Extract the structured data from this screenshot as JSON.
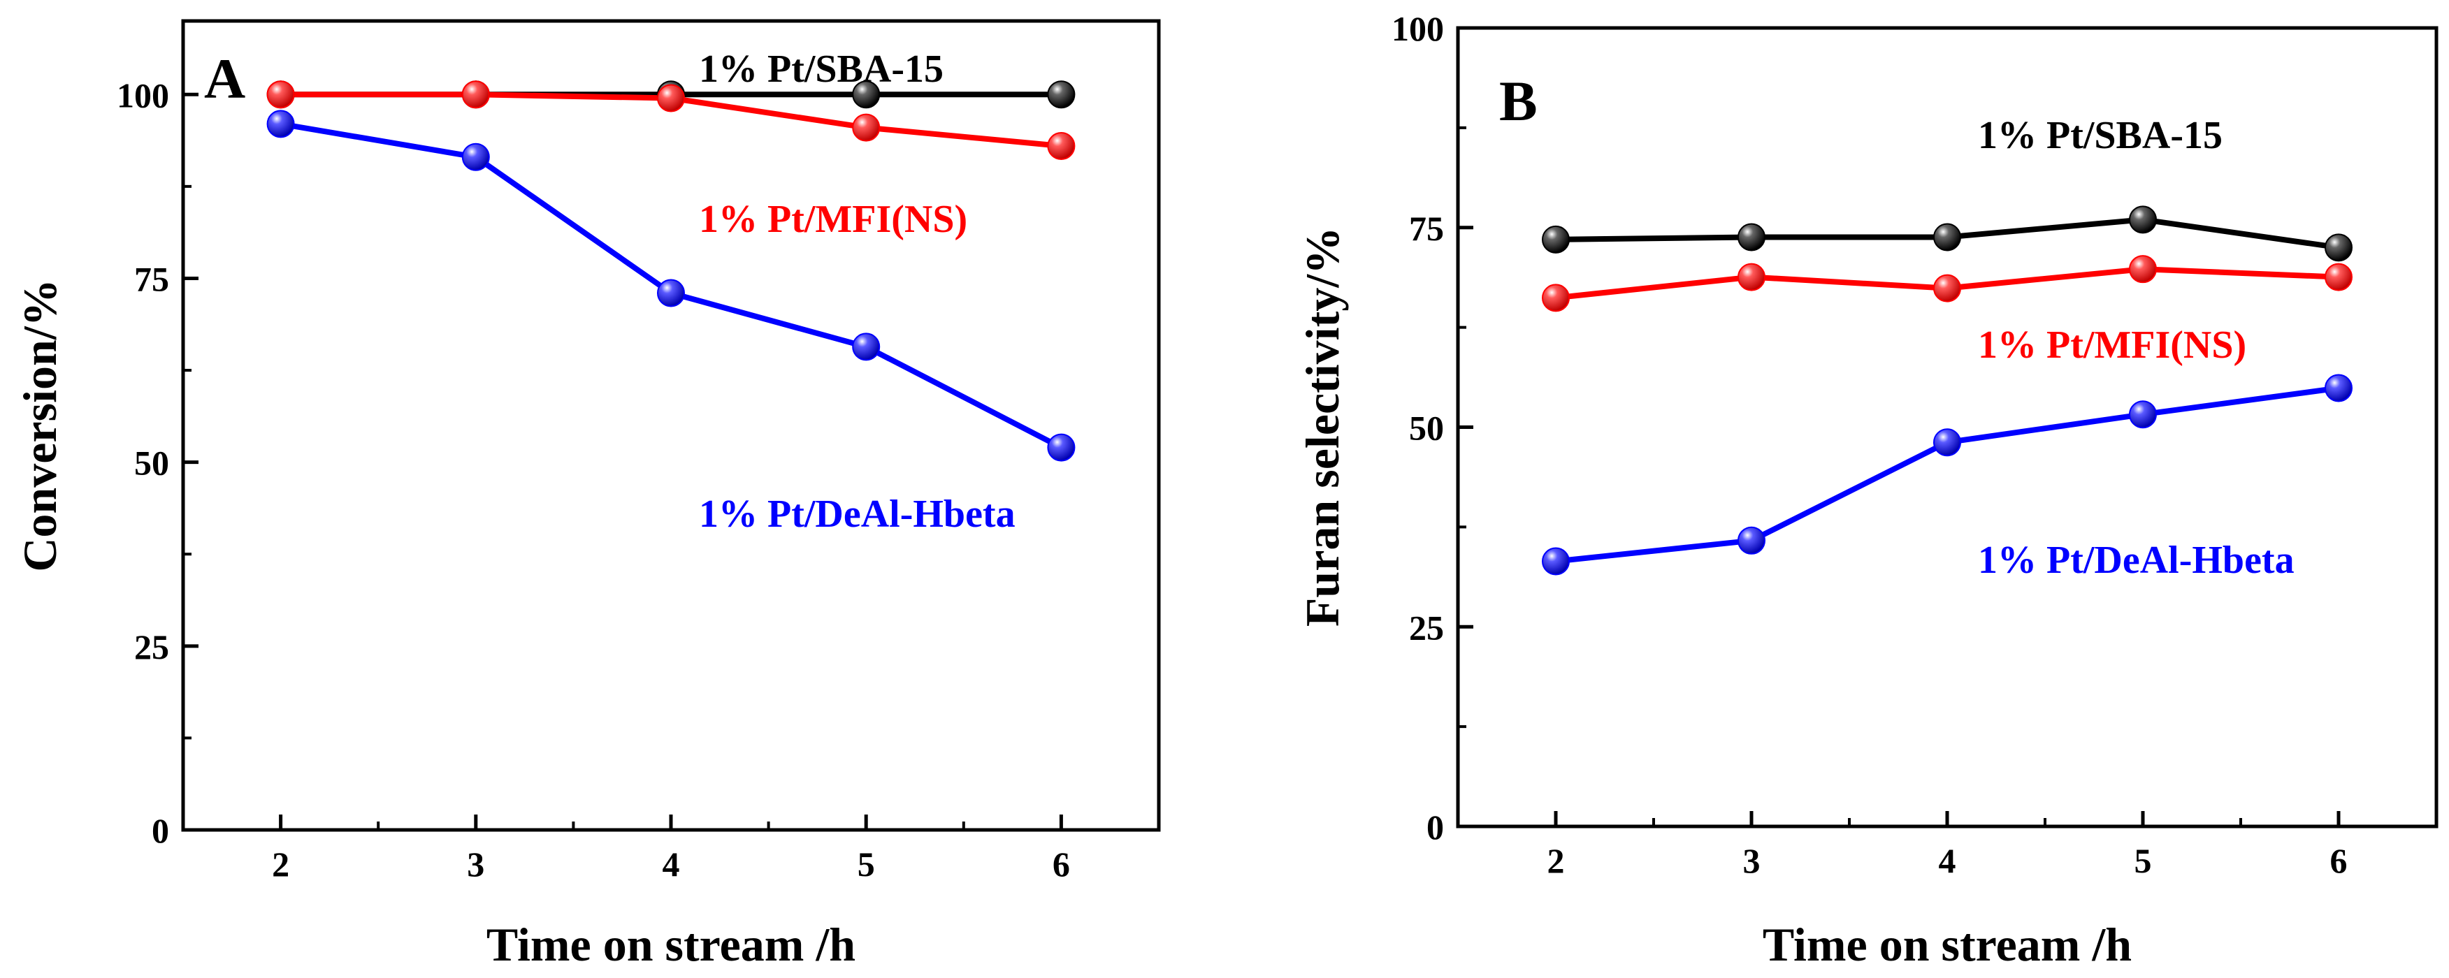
{
  "chart_data": [
    {
      "type": "line",
      "panel_label": "A",
      "xlabel": "Time on stream /h",
      "ylabel": "Conversion/%",
      "xlim": [
        1.5,
        6.5
      ],
      "ylim": [
        0,
        110
      ],
      "xticks": [
        2,
        3,
        4,
        5,
        6
      ],
      "yticks": [
        0,
        25,
        50,
        75,
        100
      ],
      "grid": false,
      "x": [
        2,
        3,
        4,
        5,
        6
      ],
      "series": [
        {
          "name": "1% Pt/SBA-15",
          "color": "#000000",
          "values": [
            100,
            100,
            100,
            100,
            100
          ]
        },
        {
          "name": "1% Pt/MFI(NS)",
          "color": "#ff0000",
          "values": [
            100,
            100,
            99.5,
            95.5,
            93
          ]
        },
        {
          "name": "1% Pt/DeAl-Hbeta",
          "color": "#0000ff",
          "values": [
            96,
            91.5,
            73,
            65.7,
            52
          ]
        }
      ]
    },
    {
      "type": "line",
      "panel_label": "B",
      "xlabel": "Time on stream /h",
      "ylabel": "Furan selectivity/%",
      "xlim": [
        1.5,
        6.5
      ],
      "ylim": [
        0,
        100
      ],
      "xticks": [
        2,
        3,
        4,
        5,
        6
      ],
      "yticks": [
        0,
        25,
        50,
        75,
        100
      ],
      "grid": false,
      "x": [
        2,
        3,
        4,
        5,
        6
      ],
      "series": [
        {
          "name": "1% Pt/SBA-15",
          "color": "#000000",
          "values": [
            73.5,
            73.8,
            73.8,
            76,
            72.5
          ]
        },
        {
          "name": "1% Pt/MFI(NS)",
          "color": "#ff0000",
          "values": [
            66.2,
            68.8,
            67.4,
            69.8,
            68.8
          ]
        },
        {
          "name": "1% Pt/DeAl-Hbeta",
          "color": "#0000ff",
          "values": [
            33.2,
            35.8,
            48.1,
            51.6,
            54.9
          ]
        }
      ]
    }
  ]
}
